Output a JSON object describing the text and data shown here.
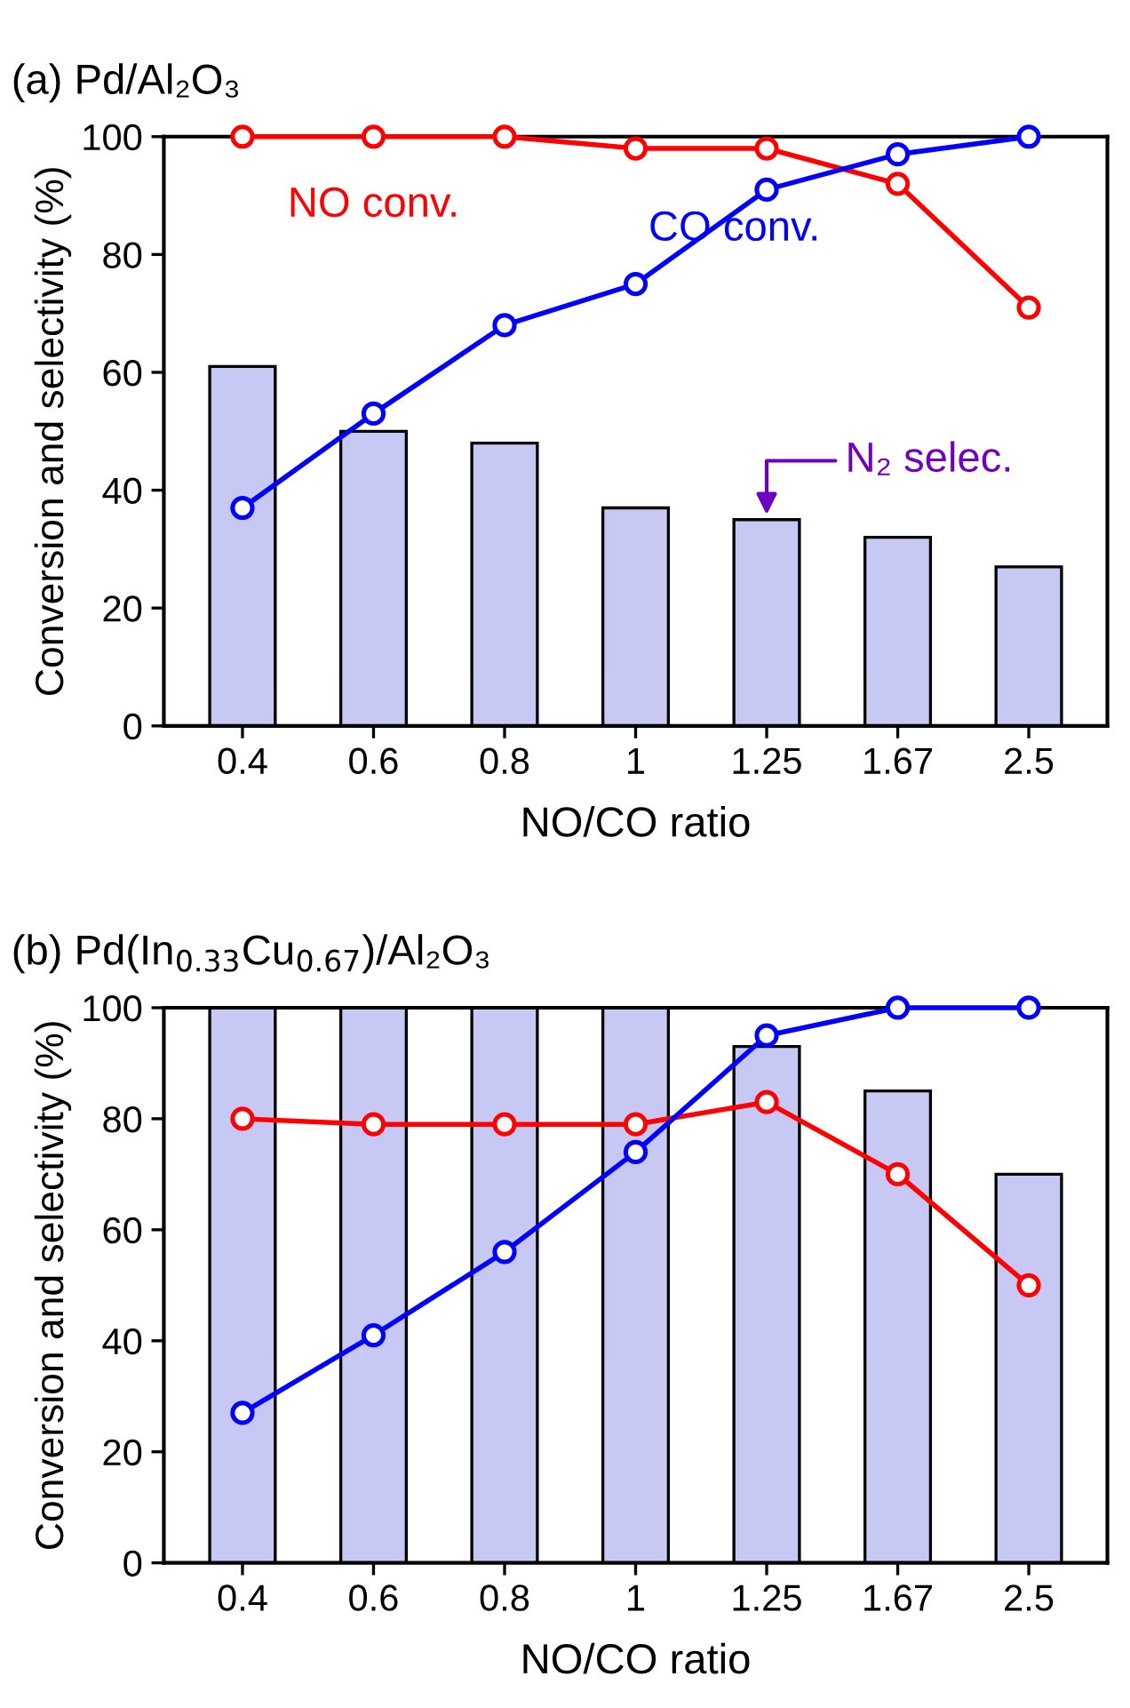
{
  "chart_data": [
    {
      "type": "bar",
      "title": "(a) Pd/Al₂O₃",
      "xlabel": "NO/CO ratio",
      "ylabel": "Conversion and selectivity (%)",
      "categories": [
        "0.4",
        "0.6",
        "0.8",
        "1",
        "1.25",
        "1.67",
        "2.5"
      ],
      "ylim": [
        0,
        100
      ],
      "yticks": [
        0,
        20,
        40,
        60,
        80,
        100
      ],
      "grid": false,
      "legend": false,
      "marker": "circle",
      "line_style": "solid",
      "series": [
        {
          "name": "N₂ selec.",
          "color": "#c8c8f5",
          "values": [
            61,
            50,
            48,
            37,
            35,
            32,
            27
          ]
        },
        {
          "name": "NO conv.",
          "type": "line",
          "color": "#ff0000",
          "values": [
            100,
            100,
            100,
            98,
            98,
            92,
            71
          ]
        },
        {
          "name": "CO conv.",
          "type": "line",
          "color": "#0000ff",
          "values": [
            37,
            53,
            68,
            75,
            91,
            97,
            100
          ]
        }
      ]
    },
    {
      "type": "bar",
      "title": "(b) Pd(In$_{0.33}$Cu$_{0.67}$)/Al₂O₃",
      "xlabel": "NO/CO ratio",
      "ylabel": "Conversion and selectivity (%)",
      "categories": [
        "0.4",
        "0.6",
        "0.8",
        "1",
        "1.25",
        "1.67",
        "2.5"
      ],
      "ylim": [
        0,
        100
      ],
      "yticks": [
        0,
        20,
        40,
        60,
        80,
        100
      ],
      "grid": false,
      "legend": false,
      "marker": "circle",
      "line_style": "solid",
      "series": [
        {
          "color": "#c8c8f5",
          "values": [
            100,
            100,
            100,
            100,
            93,
            85,
            70
          ]
        },
        {
          "type": "line",
          "color": "#ff0000",
          "values": [
            80,
            79,
            79,
            79,
            83,
            70,
            50
          ]
        },
        {
          "type": "line",
          "color": "#0000ff",
          "values": [
            27,
            41,
            56,
            74,
            95,
            100,
            100
          ]
        }
      ]
    }
  ]
}
